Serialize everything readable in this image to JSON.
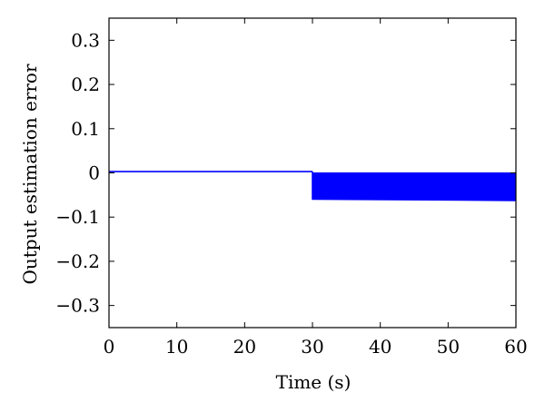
{
  "chart_data": {
    "type": "line",
    "title": "",
    "xlabel": "Time (s)",
    "ylabel": "Output estimation error",
    "xlim": [
      0,
      60
    ],
    "ylim": [
      -0.35,
      0.35
    ],
    "xticks": [
      0,
      10,
      20,
      30,
      40,
      50,
      60
    ],
    "xtick_labels": [
      "0",
      "10",
      "20",
      "30",
      "40",
      "50",
      "60"
    ],
    "yticks": [
      0.3,
      0.2,
      0.1,
      0,
      -0.1,
      -0.2,
      -0.3
    ],
    "ytick_labels": [
      "0.3",
      "0.2",
      "0.1",
      "0",
      "−0.1",
      "−0.2",
      "−0.3"
    ],
    "grid": false,
    "series": [
      {
        "color": "#0000ff",
        "segments": [
          {
            "kind": "line",
            "x": [
              0,
              30
            ],
            "y": [
              0.003,
              0.003
            ]
          },
          {
            "kind": "band",
            "x": [
              30,
              60
            ],
            "y_max": [
              0.0,
              0.0
            ],
            "y_min": [
              -0.06,
              -0.063
            ]
          }
        ]
      }
    ]
  }
}
